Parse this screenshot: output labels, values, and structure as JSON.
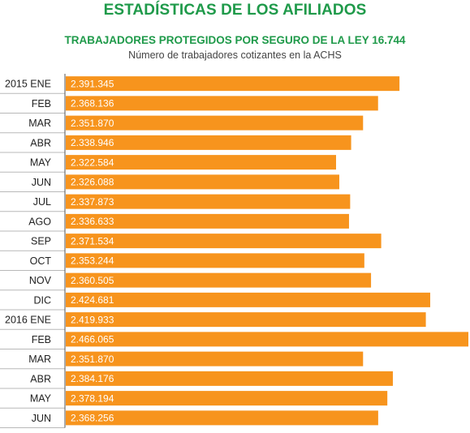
{
  "header": {
    "title": "ESTADÍSTICAS DE LOS AFILIADOS"
  },
  "chart_data": {
    "type": "bar",
    "orientation": "horizontal",
    "title": "TRABAJADORES PROTEGIDOS POR SEGURO DE LA LEY 16.744",
    "subtitle": "Número de trabajadores cotizantes en la ACHS",
    "categories": [
      "2015 ENE",
      "FEB",
      "MAR",
      "ABR",
      "MAY",
      "JUN",
      "JUL",
      "AGO",
      "SEP",
      "OCT",
      "NOV",
      "DIC",
      "2016 ENE",
      "FEB",
      "MAR",
      "ABR",
      "MAY",
      "JUN"
    ],
    "values": [
      2391345,
      2368136,
      2351870,
      2338946,
      2322584,
      2326088,
      2337873,
      2336633,
      2371534,
      2353244,
      2360505,
      2424681,
      2419933,
      2466065,
      2351870,
      2384176,
      2378194,
      2368256
    ],
    "value_labels": [
      "2.391.345",
      "2.368.136",
      "2.351.870",
      "2.338.946",
      "2.322.584",
      "2.326.088",
      "2.337.873",
      "2.336.633",
      "2.371.534",
      "2.353.244",
      "2.360.505",
      "2.424.681",
      "2.419.933",
      "2.466.065",
      "2.351.870",
      "2.384.176",
      "2.378.194",
      "2.368.256"
    ],
    "bar_color": "#f7941d",
    "grid": false,
    "legend": "none"
  },
  "colors": {
    "title": "#1f9a4a",
    "bar": "#f7941d",
    "bar_text": "#ffffff"
  }
}
